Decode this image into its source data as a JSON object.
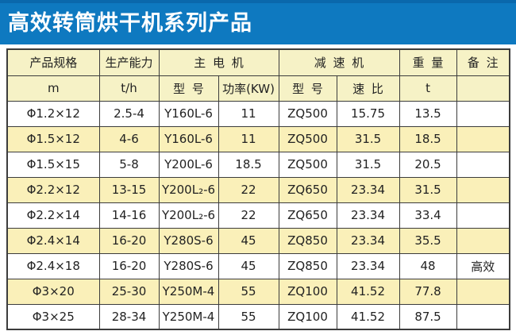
{
  "banner": {
    "title": "高效转筒烘干机系列产品"
  },
  "colors": {
    "banner_blue": "#0E79C0",
    "banner_top_strip": "#0A68AC",
    "header_yellow": "#F6F2C6",
    "row_yellow": "#FAF0B9",
    "border": "#3C3C3C"
  },
  "table": {
    "header_row1": [
      {
        "label": "产品规格",
        "colspan": 1
      },
      {
        "label": "生产能力",
        "colspan": 1
      },
      {
        "label": "主 电 机",
        "colspan": 2
      },
      {
        "label": "减 速 机",
        "colspan": 2
      },
      {
        "label": "重 量",
        "colspan": 1
      },
      {
        "label": "备 注",
        "colspan": 1
      }
    ],
    "header_row2": [
      "m",
      "t/h",
      "型 号",
      "功率(KW)",
      "型 号",
      "速 比",
      "t",
      ""
    ],
    "rows": [
      [
        "Φ1.2×12",
        "2.5-4",
        "Y160L-6",
        "11",
        "ZQ500",
        "15.75",
        "13.5",
        ""
      ],
      [
        "Φ1.5×12",
        "4-6",
        "Y160L-6",
        "11",
        "ZQ500",
        "31.5",
        "18.5",
        ""
      ],
      [
        "Φ1.5×15",
        "5-8",
        "Y200L-6",
        "18.5",
        "ZQ500",
        "31.5",
        "20.5",
        ""
      ],
      [
        "Φ2.2×12",
        "13-15",
        "Y200L₂-6",
        "22",
        "ZQ650",
        "23.34",
        "31.5",
        ""
      ],
      [
        "Φ2.2×14",
        "14-16",
        "Y200L₂-6",
        "22",
        "ZQ650",
        "23.34",
        "33.4",
        ""
      ],
      [
        "Φ2.4×14",
        "16-20",
        "Y280S-6",
        "45",
        "ZQ850",
        "23.34",
        "35.5",
        ""
      ],
      [
        "Φ2.4×18",
        "16-20",
        "Y280S-6",
        "45",
        "ZQ850",
        "23.34",
        "48",
        "高效"
      ],
      [
        "Φ3×20",
        "25-30",
        "Y250M-4",
        "55",
        "ZQ100",
        "41.52",
        "77.8",
        ""
      ],
      [
        "Φ3×25",
        "28-34",
        "Y250M-4",
        "55",
        "ZQ100",
        "41.52",
        "87.5",
        ""
      ]
    ]
  }
}
